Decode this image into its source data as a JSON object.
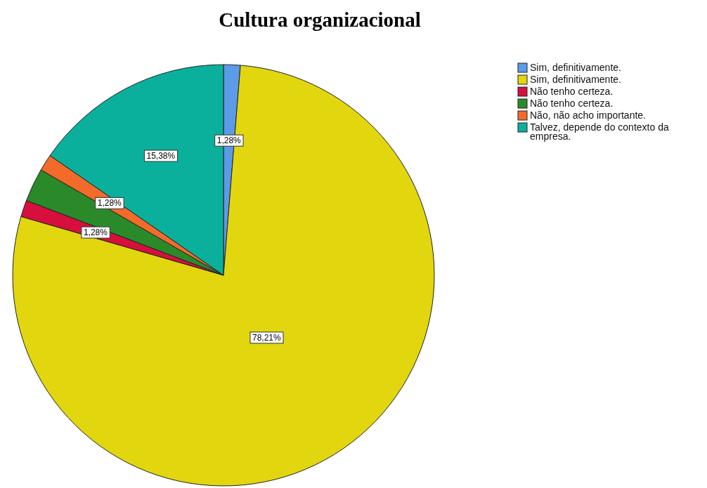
{
  "chart_data": {
    "type": "pie",
    "title": "Cultura organizacional",
    "categories": [
      "Sim, definitivamente.",
      "Sim, definitivamente.",
      "Não tenho certeza.",
      "Não tenho certeza.",
      "Não, não acho importante.",
      "Talvez, depende do contexto da empresa."
    ],
    "values": [
      1.28,
      78.21,
      1.28,
      2.56,
      1.28,
      15.38
    ],
    "colors": [
      "#5b9be8",
      "#e2d60f",
      "#d70f3c",
      "#2a8a2a",
      "#f26b2a",
      "#0bb09c"
    ],
    "value_labels": [
      "1,28%",
      "78,21%",
      "1,28%",
      null,
      "1,28%",
      "15,38%"
    ],
    "legend": "top right"
  }
}
